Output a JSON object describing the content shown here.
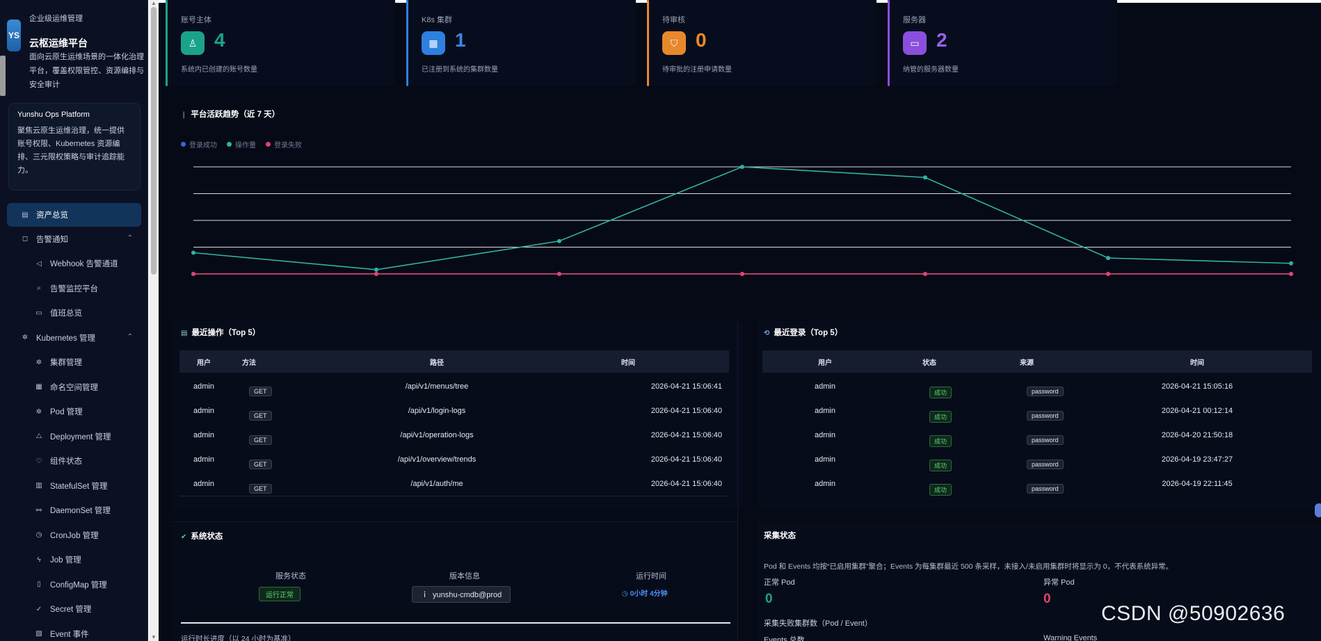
{
  "sidebar": {
    "logo_text": "YS",
    "eyebrow": "企业级运维管理",
    "title": "云枢运维平台",
    "description": "面向云原生运维场景的一体化治理平台，覆盖权限管控、资源编排与安全审计",
    "platform_card": {
      "title": "Yunshu Ops Platform",
      "description": "聚焦云原生运维治理，统一提供账号权限、Kubernetes 资源编排、三元限权策略与审计追踪能力。"
    },
    "nav": [
      {
        "label": "资产总览",
        "icon": "dashboard-icon",
        "level": 0,
        "active": true
      },
      {
        "label": "告警通知",
        "icon": "bell-icon",
        "level": 1,
        "expandable": true
      },
      {
        "label": "Webhook 告警通道",
        "icon": "megaphone-icon",
        "level": 2
      },
      {
        "label": "告警监控平台",
        "icon": "search-icon",
        "level": 2
      },
      {
        "label": "值班总览",
        "icon": "calendar-icon",
        "level": 2
      },
      {
        "label": "Kubernetes 管理",
        "icon": "kubernetes-icon",
        "level": 1,
        "expandable": true
      },
      {
        "label": "集群管理",
        "icon": "cluster-icon",
        "level": 2
      },
      {
        "label": "命名空间管理",
        "icon": "grid-icon",
        "level": 2
      },
      {
        "label": "Pod 管理",
        "icon": "pod-icon",
        "level": 2
      },
      {
        "label": "Deployment 管理",
        "icon": "deployment-icon",
        "level": 2
      },
      {
        "label": "组件状态",
        "icon": "heart-icon",
        "level": 2
      },
      {
        "label": "StatefulSet 管理",
        "icon": "statefulset-icon",
        "level": 2
      },
      {
        "label": "DaemonSet 管理",
        "icon": "link-icon",
        "level": 2
      },
      {
        "label": "CronJob 管理",
        "icon": "clock-icon",
        "level": 2
      },
      {
        "label": "Job 管理",
        "icon": "lightning-icon",
        "level": 2
      },
      {
        "label": "ConfigMap 管理",
        "icon": "file-icon",
        "level": 2
      },
      {
        "label": "Secret 管理",
        "icon": "shield-check-icon",
        "level": 2
      },
      {
        "label": "Event 事件",
        "icon": "event-icon",
        "level": 2
      }
    ]
  },
  "stats": [
    {
      "label": "账号主体",
      "value": "4",
      "sub": "系统内已创建的账号数量",
      "icon": "user-icon",
      "color": "#1aa38a",
      "value_color": "#1aa38a"
    },
    {
      "label": "K8s 集群",
      "value": "1",
      "sub": "已注册到系统的集群数量",
      "icon": "cluster-icon",
      "color": "#2d7fe0",
      "value_color": "#3b86e8"
    },
    {
      "label": "待审核",
      "value": "0",
      "sub": "待审批的注册申请数量",
      "icon": "shield-icon",
      "color": "#e8882c",
      "value_color": "#e8882c"
    },
    {
      "label": "服务器",
      "value": "2",
      "sub": "纳管的服务器数量",
      "icon": "monitor-icon",
      "color": "#8a4fdc",
      "value_color": "#9a60f0"
    }
  ],
  "trend": {
    "title": "平台活跃趋势（近 7 天）"
  },
  "chart_data": {
    "type": "line",
    "title": "平台活跃趋势（近 7 天）",
    "x": [
      1,
      2,
      3,
      4,
      5,
      6,
      7
    ],
    "series": [
      {
        "name": "登录成功",
        "color": "#3f63d8",
        "values": [
          0,
          0,
          0,
          0,
          0,
          0,
          0
        ]
      },
      {
        "name": "操作量",
        "color": "#2fb3a1",
        "values": [
          20,
          4,
          31,
          101,
          91,
          15,
          10
        ]
      },
      {
        "name": "登录失败",
        "color": "#e0446c",
        "values": [
          0,
          0,
          0,
          0,
          0,
          0,
          0
        ]
      }
    ],
    "ylim": [
      0,
      101
    ],
    "grid": true,
    "legend_position": "top-left"
  },
  "recent_ops": {
    "title": "最近操作（Top 5）",
    "columns": [
      "用户",
      "方法",
      "路径",
      "时间"
    ],
    "rows": [
      {
        "user": "admin",
        "method": "GET",
        "path": "/api/v1/menus/tree",
        "time": "2026-04-21 15:06:41"
      },
      {
        "user": "admin",
        "method": "GET",
        "path": "/api/v1/login-logs",
        "time": "2026-04-21 15:06:40"
      },
      {
        "user": "admin",
        "method": "GET",
        "path": "/api/v1/operation-logs",
        "time": "2026-04-21 15:06:40"
      },
      {
        "user": "admin",
        "method": "GET",
        "path": "/api/v1/overview/trends",
        "time": "2026-04-21 15:06:40"
      },
      {
        "user": "admin",
        "method": "GET",
        "path": "/api/v1/auth/me",
        "time": "2026-04-21 15:06:40"
      }
    ]
  },
  "recent_logins": {
    "title": "最近登录（Top 5）",
    "columns": [
      "用户",
      "状态",
      "来源",
      "时间"
    ],
    "rows": [
      {
        "user": "admin",
        "status": "成功",
        "source": "password",
        "time": "2026-04-21 15:05:16"
      },
      {
        "user": "admin",
        "status": "成功",
        "source": "password",
        "time": "2026-04-21 00:12:14"
      },
      {
        "user": "admin",
        "status": "成功",
        "source": "password",
        "time": "2026-04-20 21:50:18"
      },
      {
        "user": "admin",
        "status": "成功",
        "source": "password",
        "time": "2026-04-19 23:47:27"
      },
      {
        "user": "admin",
        "status": "成功",
        "source": "password",
        "time": "2026-04-19 22:11:45"
      }
    ]
  },
  "system_status": {
    "title": "系统状态",
    "service_label": "服务状态",
    "service_value": "运行正常",
    "version_label": "版本信息",
    "version_value": "yunshu-cmdb@prod",
    "uptime_label": "运行时间",
    "uptime_value": "0小时 4分钟",
    "progress_label": "运行时长进度（以 24 小时为基准）"
  },
  "collect_status": {
    "title": "采集状态",
    "note": "Pod 和 Events 均按“已启用集群”聚合；Events 为每集群最近 500 条采样，未接入/未启用集群时将显示为 0，不代表系统异常。",
    "normal_pod_label": "正常 Pod",
    "normal_pod_value": "0",
    "abnormal_pod_label": "异常 Pod",
    "abnormal_pod_value": "0",
    "fail_label": "采集失败集群数（Pod / Event）",
    "events_label": "Events 总数",
    "warning_label": "Warning Events"
  },
  "watermark": "CSDN @50902636"
}
